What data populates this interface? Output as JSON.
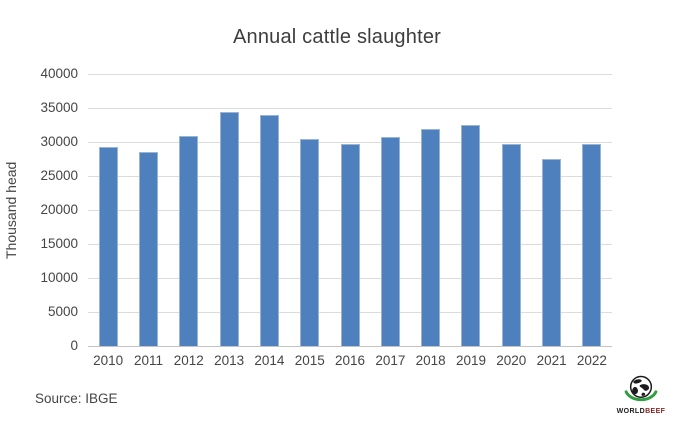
{
  "title": "Annual cattle slaughter",
  "source_note": "Source: IBGE",
  "logo": {
    "name": "worldbeef-logo",
    "text_primary": "WORLD",
    "text_secondary": "BEEF"
  },
  "colors": {
    "bar": "#4d80bc",
    "bar_edge": "#9ab4d6",
    "gridline": "#dcdcdc",
    "baseline": "#c3c3c3",
    "text": "#454545",
    "title_text": "#3d3d3d",
    "logo_green": "#2f9e41",
    "logo_black": "#1c1c1c"
  },
  "chart_data": {
    "type": "bar",
    "title": "Annual cattle slaughter",
    "categories": [
      "2010",
      "2011",
      "2012",
      "2013",
      "2014",
      "2015",
      "2016",
      "2017",
      "2018",
      "2019",
      "2020",
      "2021",
      "2022"
    ],
    "values": [
      29200,
      28600,
      30900,
      34400,
      33900,
      30500,
      29650,
      30800,
      31900,
      32450,
      29650,
      27500,
      29700
    ],
    "xlabel": "",
    "ylabel": "Thousand head",
    "ylim": [
      0,
      40000
    ],
    "yticks": [
      0,
      5000,
      10000,
      15000,
      20000,
      25000,
      30000,
      35000,
      40000
    ],
    "grid": true,
    "legend": "none",
    "source": "Source: IBGE"
  }
}
